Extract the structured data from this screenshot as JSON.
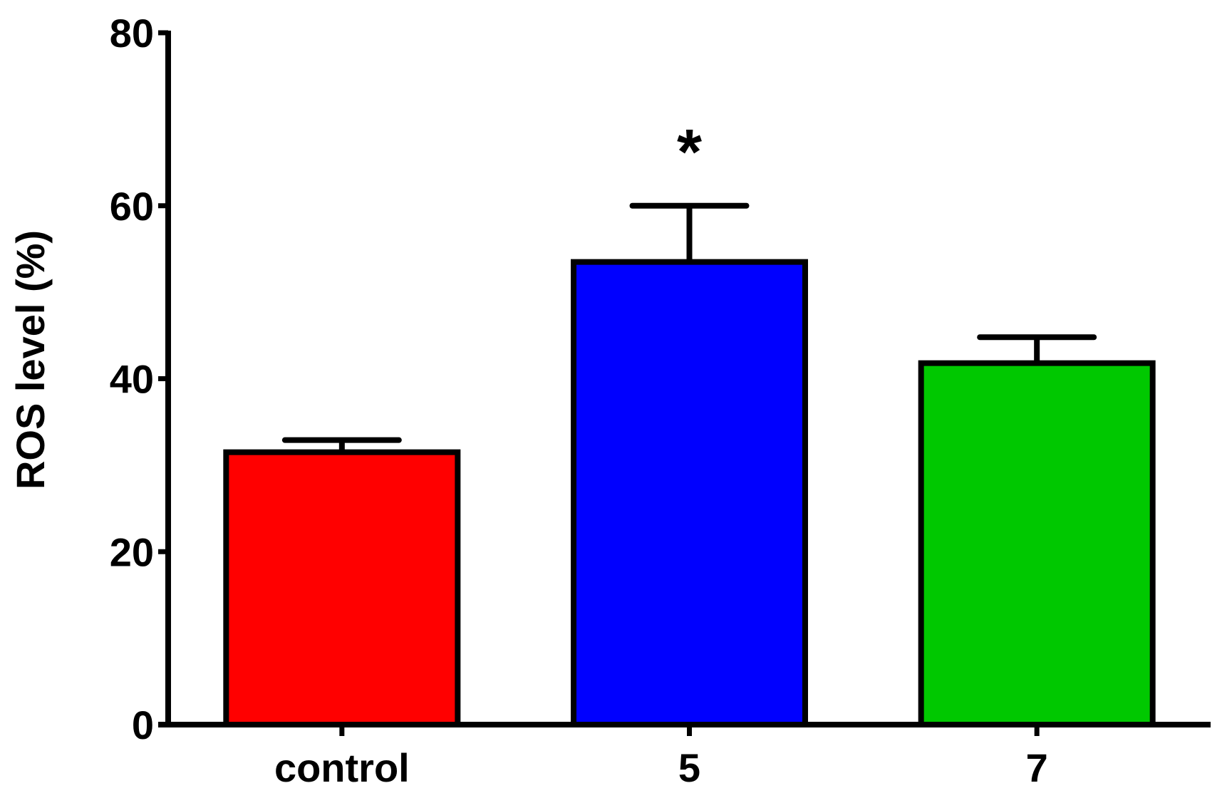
{
  "chart_data": {
    "type": "bar",
    "y_label": "ROS level (%)",
    "categories": [
      "control",
      "5",
      "7"
    ],
    "values": [
      31.5,
      53.5,
      41.8
    ],
    "errors": [
      1.4,
      6.5,
      3.0
    ],
    "colors": [
      "#ff0000",
      "#0000ff",
      "#00c800"
    ],
    "annotations": [
      {
        "category_index": 1,
        "text": "*"
      }
    ],
    "ylim": [
      0,
      80
    ],
    "yticks": [
      0,
      20,
      40,
      60,
      80
    ],
    "grid": false
  }
}
